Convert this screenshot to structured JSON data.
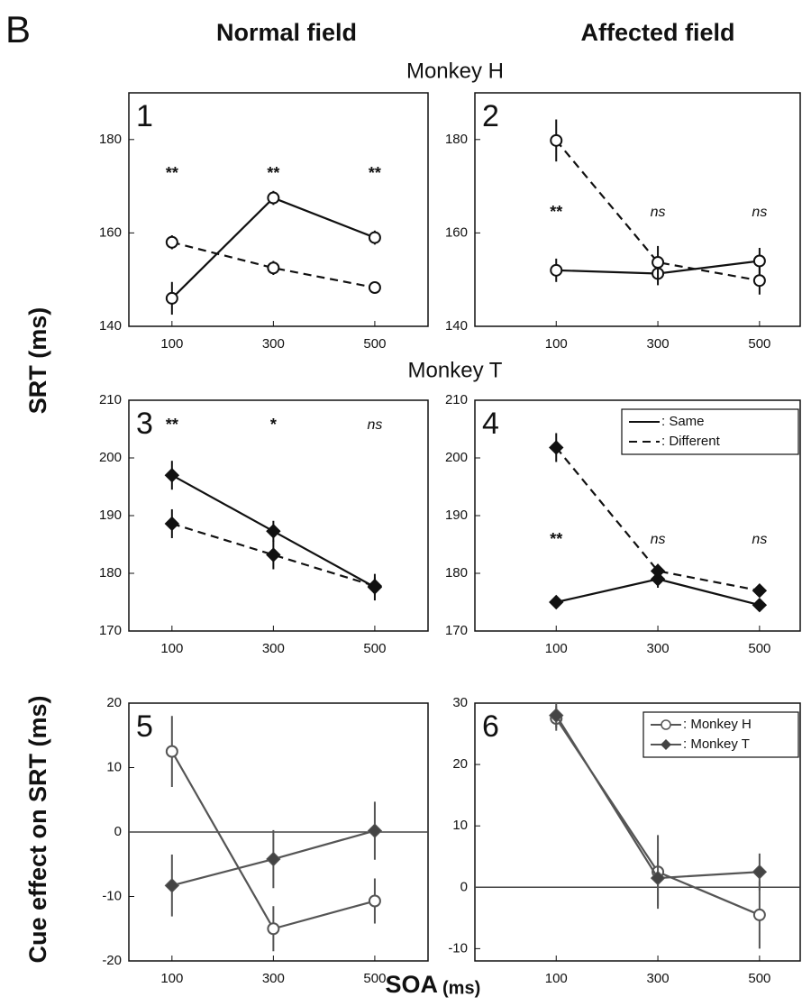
{
  "figure": {
    "label": "B",
    "column_titles": [
      "Normal field",
      "Affected field"
    ],
    "row_titles": [
      "Monkey H",
      "Monkey T"
    ],
    "y_labels": [
      "SRT (ms)",
      "Cue effect on SRT (ms)"
    ],
    "x_label": "SOA",
    "x_label_unit": "(ms)"
  },
  "chart_data": [
    {
      "type": "line",
      "panel_label": "1",
      "x": [
        100,
        300,
        500
      ],
      "xlim": [
        15,
        605
      ],
      "xticks": [
        100,
        300,
        500
      ],
      "ylim": [
        140,
        190
      ],
      "yticks": [
        140,
        160,
        180
      ],
      "annotations": [
        "**",
        "**",
        "**"
      ],
      "series": [
        {
          "values": [
            146,
            167.5,
            159
          ],
          "errors": [
            3.5,
            1.5,
            1.5
          ],
          "color": "#111111",
          "line_style": "solid",
          "marker": "circle",
          "marker_fill": "#ffffff"
        },
        {
          "values": [
            158,
            152.5,
            148.3
          ],
          "errors": [
            1.5,
            1.5,
            1.2
          ],
          "color": "#111111",
          "line_style": "dashed",
          "marker": "circle",
          "marker_fill": "#ffffff"
        }
      ]
    },
    {
      "type": "line",
      "panel_label": "2",
      "x": [
        100,
        300,
        500
      ],
      "xlim": [
        -60,
        580
      ],
      "xticks": [
        100,
        300,
        500
      ],
      "ylim": [
        140,
        190
      ],
      "yticks": [
        140,
        160,
        180
      ],
      "annotations": [
        "**",
        "ns",
        "ns"
      ],
      "series": [
        {
          "values": [
            152,
            151.3,
            154
          ],
          "errors": [
            2.5,
            2.5,
            2.8
          ],
          "color": "#111111",
          "line_style": "solid",
          "marker": "circle",
          "marker_fill": "#ffffff"
        },
        {
          "values": [
            179.8,
            153.7,
            149.8
          ],
          "errors": [
            4.5,
            3.5,
            3
          ],
          "color": "#111111",
          "line_style": "dashed",
          "marker": "circle",
          "marker_fill": "#ffffff"
        }
      ]
    },
    {
      "type": "line",
      "panel_label": "3",
      "x": [
        100,
        300,
        500
      ],
      "xlim": [
        15,
        605
      ],
      "xticks": [
        100,
        300,
        500
      ],
      "ylim": [
        170,
        210
      ],
      "yticks": [
        170,
        180,
        190,
        200,
        210
      ],
      "annotations": [
        "**",
        "*",
        "ns"
      ],
      "series": [
        {
          "values": [
            197,
            187.3,
            177.6
          ],
          "errors": [
            2.5,
            1.8,
            2.3
          ],
          "color": "#111111",
          "line_style": "solid",
          "marker": "diamond",
          "marker_fill": "#111111"
        },
        {
          "values": [
            188.6,
            183.2,
            177.8
          ],
          "errors": [
            2.5,
            2.5,
            1.5
          ],
          "color": "#111111",
          "line_style": "dashed",
          "marker": "diamond",
          "marker_fill": "#111111"
        }
      ]
    },
    {
      "type": "line",
      "panel_label": "4",
      "x": [
        100,
        300,
        500
      ],
      "xlim": [
        -60,
        580
      ],
      "xticks": [
        100,
        300,
        500
      ],
      "ylim": [
        170,
        210
      ],
      "yticks": [
        170,
        180,
        190,
        200,
        210
      ],
      "annotations": [
        "**",
        "ns",
        "ns"
      ],
      "legend": {
        "position": "upper right",
        "markers": false
      },
      "series": [
        {
          "name": ": Same",
          "values": [
            175,
            179,
            174.5
          ],
          "errors": [
            1,
            1.5,
            1
          ],
          "color": "#111111",
          "line_style": "solid",
          "marker": "diamond",
          "marker_fill": "#111111"
        },
        {
          "name": ": Different",
          "values": [
            201.8,
            180.4,
            177
          ],
          "errors": [
            2.5,
            1.2,
            0.8
          ],
          "color": "#111111",
          "line_style": "dashed",
          "marker": "diamond",
          "marker_fill": "#111111"
        }
      ]
    },
    {
      "type": "line",
      "panel_label": "5",
      "x": [
        100,
        300,
        500
      ],
      "xlim": [
        15,
        605
      ],
      "xticks": [
        100,
        300,
        500
      ],
      "ylim": [
        -20,
        20
      ],
      "yticks": [
        -20,
        -10,
        0,
        10,
        20
      ],
      "hline": 0,
      "series": [
        {
          "values": [
            12.5,
            -15,
            -10.7
          ],
          "errors": [
            5.5,
            3.5,
            3.5
          ],
          "color": "#555555",
          "line_style": "solid",
          "marker": "circle",
          "marker_fill": "#ffffff"
        },
        {
          "values": [
            -8.3,
            -4.2,
            0.2
          ],
          "errors": [
            4.8,
            4.5,
            4.5
          ],
          "color": "#555555",
          "line_style": "solid",
          "marker": "diamond",
          "marker_fill": "#444444"
        }
      ]
    },
    {
      "type": "line",
      "panel_label": "6",
      "x": [
        100,
        300,
        500
      ],
      "xlim": [
        -60,
        580
      ],
      "xticks": [
        100,
        300,
        500
      ],
      "ylim": [
        -12,
        30
      ],
      "yticks": [
        -10,
        0,
        10,
        20,
        30
      ],
      "hline": 0,
      "legend": {
        "position": "upper right",
        "markers": true
      },
      "series": [
        {
          "name": ": Monkey H",
          "values": [
            27.5,
            2.5,
            -4.5
          ],
          "errors": [
            2,
            6,
            5.5
          ],
          "color": "#555555",
          "line_style": "solid",
          "marker": "circle",
          "marker_fill": "#ffffff"
        },
        {
          "name": ": Monkey T",
          "values": [
            28,
            1.5,
            2.5
          ],
          "errors": [
            2,
            4.5,
            3
          ],
          "color": "#555555",
          "line_style": "solid",
          "marker": "diamond",
          "marker_fill": "#444444"
        }
      ]
    }
  ]
}
